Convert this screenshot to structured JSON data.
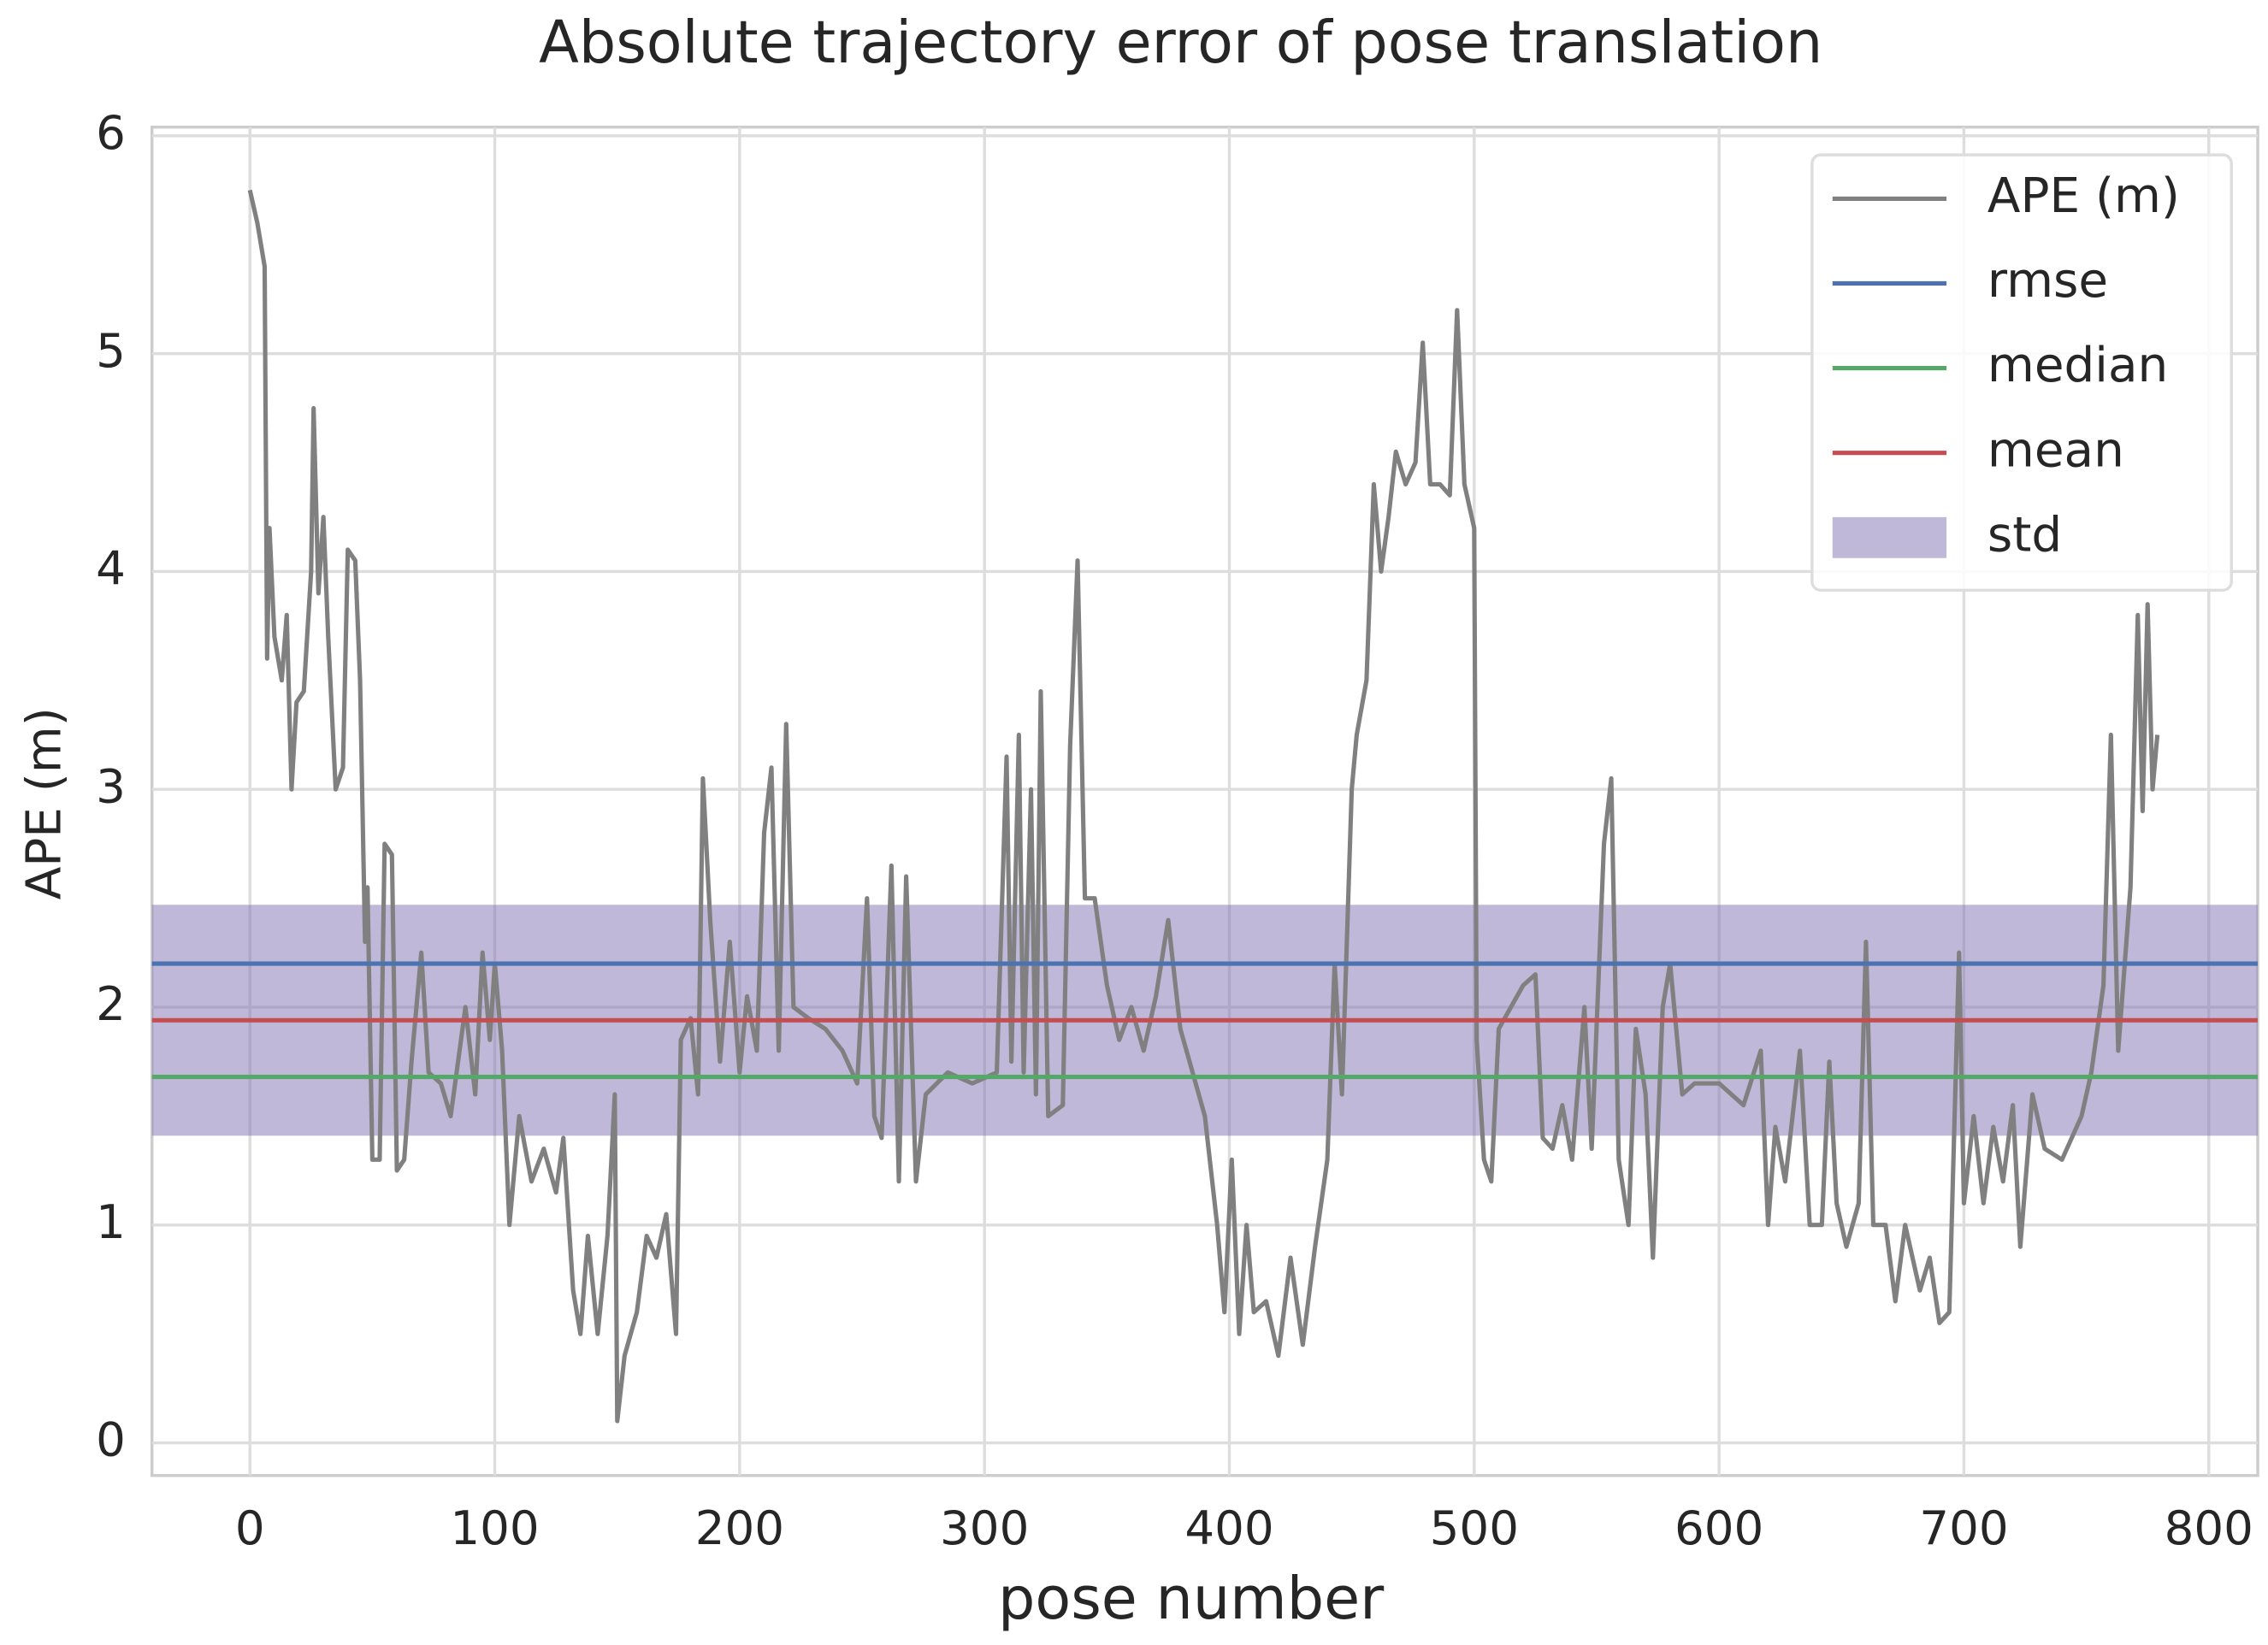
{
  "chart_data": {
    "type": "line",
    "title": "Absolute trajectory error of pose translation",
    "x_label": "pose number",
    "y_label": "APE (m)",
    "xlim": [
      -40,
      820
    ],
    "ylim": [
      -0.15,
      6.04
    ],
    "xticks": [
      0,
      100,
      200,
      300,
      400,
      500,
      600,
      700,
      800
    ],
    "yticks": [
      0,
      1,
      2,
      3,
      4,
      5,
      6
    ],
    "grid": true,
    "legend": "upper right",
    "series": [
      {
        "name": "APE (m)",
        "color": "#808080",
        "x": [
          0,
          3,
          6,
          7,
          8,
          10,
          13,
          15,
          17,
          19,
          22,
          25,
          26,
          28,
          30,
          32,
          35,
          38,
          40,
          43,
          45,
          47,
          48,
          50,
          53,
          55,
          58,
          60,
          63,
          66,
          70,
          73,
          78,
          82,
          88,
          92,
          95,
          98,
          100,
          103,
          106,
          110,
          115,
          120,
          125,
          128,
          132,
          135,
          138,
          142,
          146,
          149,
          150,
          153,
          158,
          162,
          166,
          170,
          174,
          176,
          180,
          183,
          185,
          188,
          192,
          196,
          200,
          203,
          207,
          210,
          213,
          216,
          219,
          222,
          228,
          235,
          242,
          248,
          252,
          255,
          258,
          262,
          265,
          268,
          272,
          276,
          285,
          295,
          305,
          309,
          311,
          314,
          316,
          319,
          321,
          323,
          326,
          332,
          335,
          338,
          341,
          345,
          350,
          355,
          360,
          365,
          370,
          375,
          380,
          385,
          390,
          395,
          398,
          401,
          404,
          407,
          410,
          415,
          420,
          425,
          430,
          435,
          440,
          443,
          446,
          450,
          452,
          456,
          459,
          462,
          465,
          468,
          472,
          476,
          479,
          482,
          486,
          490,
          493,
          496,
          500,
          501,
          504,
          507,
          510,
          515,
          520,
          525,
          528,
          532,
          536,
          540,
          545,
          548,
          553,
          556,
          559,
          563,
          566,
          570,
          573,
          577,
          580,
          585,
          590,
          600,
          610,
          617,
          620,
          623,
          627,
          633,
          637,
          642,
          645,
          648,
          652,
          657,
          660,
          663,
          668,
          672,
          676,
          682,
          686,
          690,
          694,
          698,
          700,
          704,
          708,
          712,
          716,
          720,
          723,
          728,
          733,
          740,
          748,
          752,
          757,
          760,
          763,
          768,
          771,
          773,
          775,
          777,
          779
        ],
        "values": [
          5.75,
          5.6,
          5.4,
          3.6,
          4.2,
          3.7,
          3.5,
          3.8,
          3.0,
          3.4,
          3.45,
          4.0,
          4.75,
          3.9,
          4.25,
          3.7,
          3.0,
          3.1,
          4.1,
          4.05,
          3.5,
          2.3,
          2.55,
          1.3,
          1.3,
          2.75,
          2.7,
          1.25,
          1.3,
          1.75,
          2.25,
          1.7,
          1.65,
          1.5,
          2.0,
          1.6,
          2.25,
          1.85,
          2.2,
          1.8,
          1.0,
          1.5,
          1.2,
          1.35,
          1.15,
          1.4,
          0.7,
          0.5,
          0.95,
          0.5,
          0.95,
          1.6,
          0.1,
          0.4,
          0.6,
          0.95,
          0.85,
          1.05,
          0.5,
          1.85,
          1.95,
          1.6,
          3.05,
          2.4,
          1.75,
          2.3,
          1.7,
          2.05,
          1.8,
          2.8,
          3.1,
          1.8,
          3.3,
          2.0,
          1.95,
          1.9,
          1.8,
          1.65,
          2.5,
          1.5,
          1.4,
          2.65,
          1.2,
          2.6,
          1.2,
          1.6,
          1.7,
          1.65,
          1.7,
          3.15,
          1.75,
          3.25,
          1.7,
          3.0,
          1.6,
          3.45,
          1.5,
          1.55,
          3.2,
          4.05,
          2.5,
          2.5,
          2.1,
          1.85,
          2.0,
          1.8,
          2.05,
          2.4,
          1.9,
          1.7,
          1.5,
          1.0,
          0.6,
          1.3,
          0.5,
          1.0,
          0.6,
          0.65,
          0.4,
          0.85,
          0.45,
          0.9,
          1.3,
          2.2,
          1.6,
          3.0,
          3.25,
          3.5,
          4.4,
          4.0,
          4.25,
          4.55,
          4.4,
          4.5,
          5.05,
          4.4,
          4.4,
          4.35,
          5.2,
          4.4,
          4.2,
          1.85,
          1.3,
          1.2,
          1.9,
          2.0,
          2.1,
          2.15,
          1.4,
          1.35,
          1.55,
          1.3,
          2.0,
          1.35,
          2.75,
          3.05,
          1.3,
          1.0,
          1.9,
          1.6,
          0.85,
          2.0,
          2.2,
          1.6,
          1.65,
          1.65,
          1.55,
          1.8,
          1.0,
          1.45,
          1.2,
          1.8,
          1.0,
          1.0,
          1.75,
          1.1,
          0.9,
          1.1,
          2.3,
          1.0,
          1.0,
          0.65,
          1.0,
          0.7,
          0.85,
          0.55,
          0.6,
          2.25,
          1.1,
          1.5,
          1.1,
          1.45,
          1.2,
          1.55,
          0.9,
          1.6,
          1.35,
          1.3,
          1.5,
          1.7,
          2.1,
          3.25,
          1.8,
          2.55,
          3.8,
          2.9,
          3.85,
          3.0,
          3.25
        ]
      }
    ],
    "hlines": [
      {
        "name": "rmse",
        "value": 2.2,
        "color": "#4c72b0"
      },
      {
        "name": "median",
        "value": 1.68,
        "color": "#55a868"
      },
      {
        "name": "mean",
        "value": 1.94,
        "color": "#c44e52"
      }
    ],
    "band": {
      "name": "std",
      "value": 0.53,
      "color": "#8172b2"
    }
  }
}
